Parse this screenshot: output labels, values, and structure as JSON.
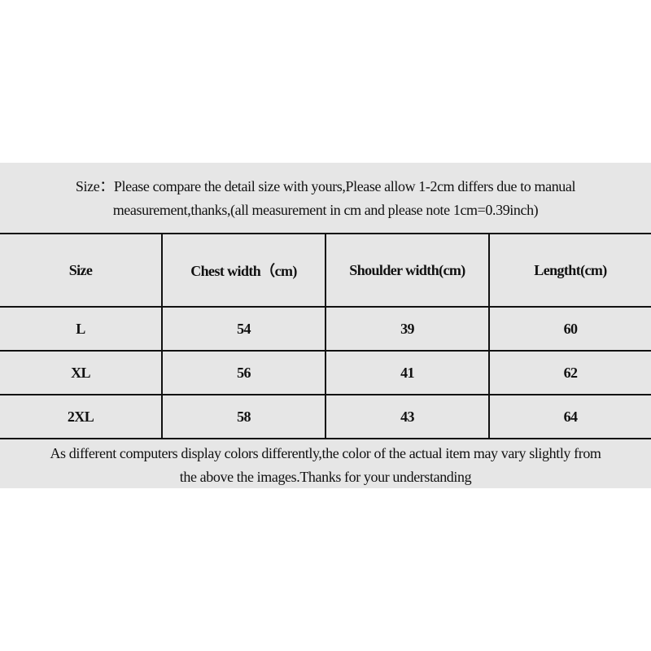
{
  "header_note": {
    "line1": "Size：Please compare the detail size with yours,Please allow 1-2cm differs due to manual",
    "line2": "measurement,thanks,(all measurement in cm and please note 1cm=0.39inch)"
  },
  "table": {
    "columns": [
      "Size",
      "Chest width（cm)",
      "Shoulder width(cm)",
      "Lengtht(cm)"
    ],
    "rows": [
      [
        "L",
        "54",
        "39",
        "60"
      ],
      [
        "XL",
        "56",
        "41",
        "62"
      ],
      [
        "2XL",
        "58",
        "43",
        "64"
      ]
    ]
  },
  "footer_note": {
    "line1": "As different computers display colors differently,the color of the actual item may vary slightly from",
    "line2": "the above the images.Thanks for your understanding"
  }
}
